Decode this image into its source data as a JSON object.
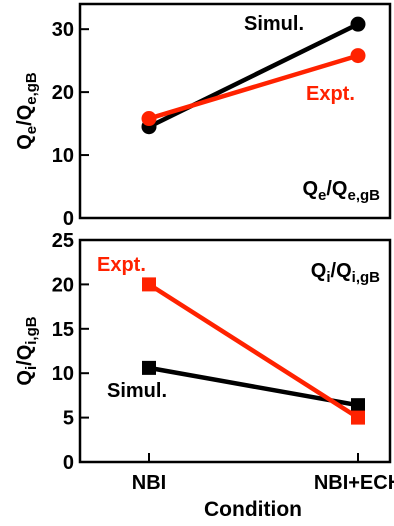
{
  "chart_data": [
    {
      "type": "line",
      "ylabel_main": "Q",
      "ylabel_sub1": "e",
      "ylabel_slash": "/Q",
      "ylabel_sub2": "e,gB",
      "panel_label_main": "Q",
      "panel_label_sub1": "e",
      "panel_label_slash": "/Q",
      "panel_label_sub2": "e,gB",
      "categories": [
        "NBI",
        "NBI+ECH"
      ],
      "ylim": [
        0,
        34
      ],
      "yticks": [
        0,
        10,
        20,
        30
      ],
      "marker": "circle",
      "series": [
        {
          "name": "Simul.",
          "color": "#000000",
          "values": [
            14.5,
            30.8
          ]
        },
        {
          "name": "Expt.",
          "color": "#ff2200",
          "values": [
            15.8,
            25.8
          ]
        }
      ]
    },
    {
      "type": "line",
      "ylabel_main": "Q",
      "ylabel_sub1": "i",
      "ylabel_slash": "/Q",
      "ylabel_sub2": "i,gB",
      "panel_label_main": "Q",
      "panel_label_sub1": "i",
      "panel_label_slash": "/Q",
      "panel_label_sub2": "i,gB",
      "categories": [
        "NBI",
        "NBI+ECH"
      ],
      "ylim": [
        0,
        25
      ],
      "yticks": [
        0,
        5,
        10,
        15,
        20,
        25
      ],
      "marker": "square",
      "series": [
        {
          "name": "Simul.",
          "color": "#000000",
          "values": [
            10.6,
            6.4
          ]
        },
        {
          "name": "Expt.",
          "color": "#ff2200",
          "values": [
            20.0,
            5.0
          ]
        }
      ]
    }
  ],
  "xlabel": "Condition"
}
